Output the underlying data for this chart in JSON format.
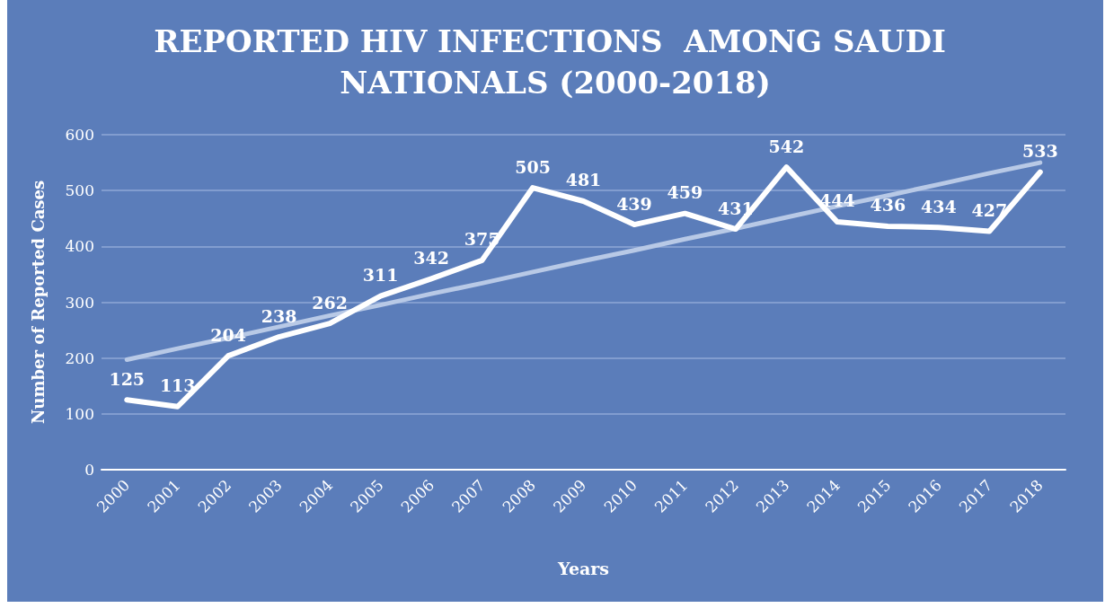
{
  "chart_data": {
    "type": "line",
    "title": "REPORTED HIV INFECTIONS  AMONG SAUDI NATIONALS (2000-2018)",
    "xlabel": "Years",
    "ylabel": "Number of Reported Cases",
    "categories": [
      "2000",
      "2001",
      "2002",
      "2003",
      "2004",
      "2005",
      "2006",
      "2007",
      "2008",
      "2009",
      "2010",
      "2011",
      "2012",
      "2013",
      "2014",
      "2015",
      "2016",
      "2017",
      "2018"
    ],
    "series": [
      {
        "color": "#ffffff",
        "values": [
          125,
          113,
          204,
          238,
          262,
          311,
          342,
          375,
          505,
          481,
          439,
          459,
          431,
          542,
          444,
          436,
          434,
          427,
          533
        ],
        "value_labels": [
          "125",
          "113",
          "204",
          "238",
          "262",
          "311",
          "342",
          "375",
          "505",
          "481",
          "439",
          "459",
          "431",
          "542",
          "444",
          "436",
          "434",
          "427",
          "533"
        ]
      },
      {
        "type": "line",
        "color": "#b8c9e6",
        "values": [
          197,
          217,
          236,
          256,
          276,
          295,
          315,
          334,
          354,
          374,
          393,
          413,
          432,
          452,
          472,
          491,
          511,
          531,
          550
        ]
      }
    ],
    "ylim": [
      0,
      600
    ],
    "yticks": [
      0,
      100,
      200,
      300,
      400,
      500,
      600
    ],
    "grid": "y",
    "marker": "none",
    "line_style": "solid"
  }
}
